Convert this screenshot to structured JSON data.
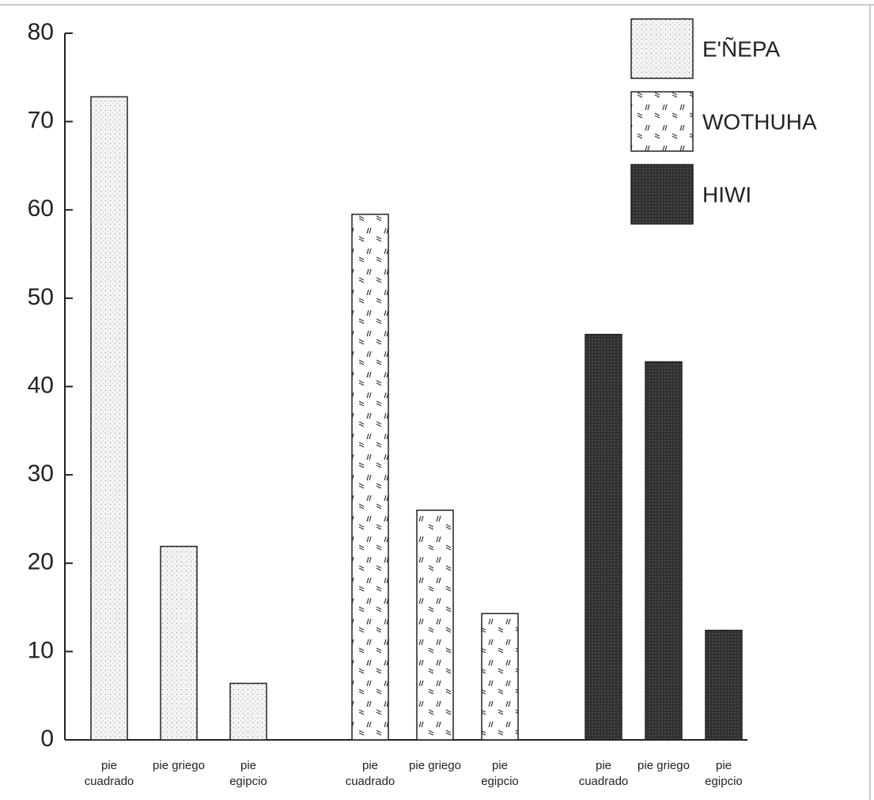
{
  "chart_data": {
    "type": "bar",
    "categories": [
      "pie cuadrado",
      "pie griego",
      "pie egipcio"
    ],
    "series": [
      {
        "name": "E'ÑEPA",
        "color": "#ececec",
        "values": [
          72.8,
          21.9,
          6.4
        ]
      },
      {
        "name": "WOTHUHA",
        "color": "#ffffff",
        "values": [
          59.5,
          26.0,
          14.3
        ]
      },
      {
        "name": "HIWI",
        "color": "#3a3a3a",
        "values": [
          45.9,
          42.8,
          12.4
        ]
      }
    ],
    "ylim": [
      0,
      80
    ],
    "yticks": [
      0,
      10,
      20,
      30,
      40,
      50,
      60,
      70,
      80
    ],
    "legend": "top-right",
    "grid": false
  }
}
